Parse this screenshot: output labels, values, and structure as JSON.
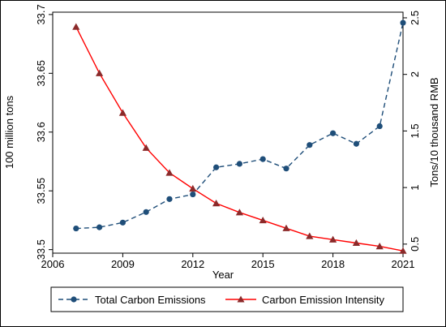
{
  "chart_data": {
    "type": "line",
    "title": "",
    "xlabel": "Year",
    "ylabel_left": "100  million tons",
    "ylabel_right": "Tons/10 thousand RMB",
    "x_ticks": [
      "2006",
      "2009",
      "2012",
      "2015",
      "2018",
      "2021"
    ],
    "y_left_ticks": [
      "33.5",
      "33.55",
      "33.6",
      "33.65",
      "33.7"
    ],
    "y_right_ticks": [
      "0.5",
      "1",
      "1.5",
      "2",
      "2.5"
    ],
    "xlim": [
      2006,
      2021
    ],
    "ylim_left": [
      33.497,
      33.702
    ],
    "ylim_right": [
      0.42,
      2.55
    ],
    "grid": false,
    "legend_position": "bottom",
    "x": [
      2007,
      2008,
      2009,
      2010,
      2011,
      2012,
      2013,
      2014,
      2015,
      2016,
      2017,
      2018,
      2019,
      2020,
      2021
    ],
    "series": [
      {
        "name": "Total Carbon Emissions",
        "axis": "left",
        "color": "#1f4e79",
        "line_style": "dashed",
        "marker": "circle",
        "values": [
          33.518,
          33.519,
          33.523,
          33.532,
          33.543,
          33.547,
          33.57,
          33.573,
          33.577,
          33.569,
          33.589,
          33.599,
          33.59,
          33.605,
          33.693
        ]
      },
      {
        "name": "Carbon Emission Intensity",
        "axis": "right",
        "color": "#ff0000",
        "line_style": "solid",
        "marker": "triangle",
        "marker_color": "#8b2a2a",
        "values": [
          2.42,
          2.01,
          1.66,
          1.35,
          1.13,
          0.99,
          0.86,
          0.78,
          0.71,
          0.64,
          0.57,
          0.54,
          0.51,
          0.48,
          0.44
        ]
      }
    ]
  }
}
